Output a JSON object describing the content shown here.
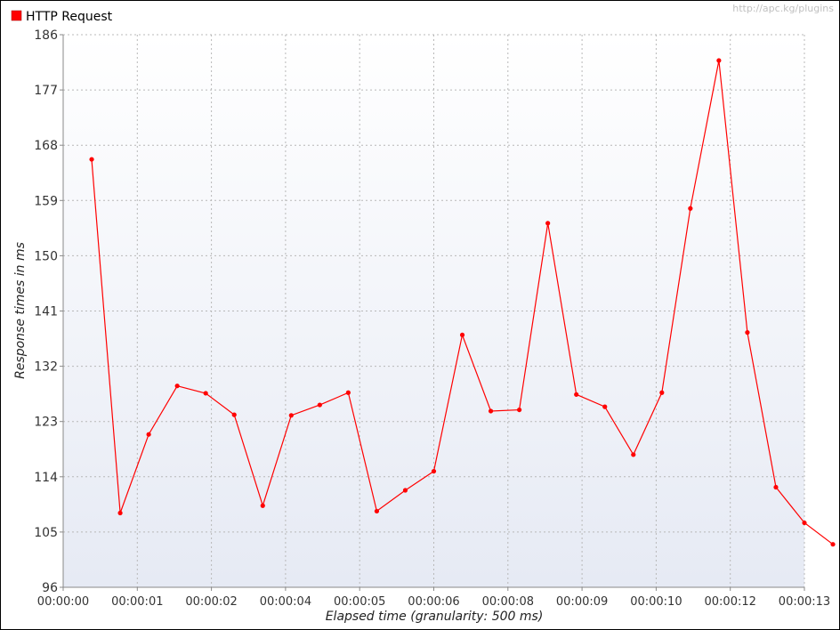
{
  "legend": {
    "label": "HTTP Request"
  },
  "watermark": "http://apc.kg/plugins",
  "colors": {
    "series": "#ff0000",
    "grid": "#b8b8b8",
    "plot_bg_top": "#ffffff",
    "plot_bg_bottom": "#e6eaf4"
  },
  "chart_data": {
    "type": "line",
    "xlabel": "Elapsed time (granularity: 500 ms)",
    "ylabel": "Response times in ms",
    "ylim": [
      96,
      186
    ],
    "xlim": [
      "00:00:00",
      "00:00:13"
    ],
    "yticks": [
      96,
      105,
      114,
      123,
      132,
      141,
      150,
      159,
      168,
      177,
      186
    ],
    "xticks": [
      "00:00:00",
      "00:00:01",
      "00:00:02",
      "00:00:04",
      "00:00:05",
      "00:00:06",
      "00:00:08",
      "00:00:09",
      "00:00:10",
      "00:00:12",
      "00:00:13"
    ],
    "grid": true,
    "legend_position": "top-left",
    "series": [
      {
        "name": "HTTP Request",
        "x": [
          "00:00:00.5",
          "00:00:01.0",
          "00:00:01.5",
          "00:00:02.0",
          "00:00:02.5",
          "00:00:03.0",
          "00:00:03.5",
          "00:00:04.0",
          "00:00:04.5",
          "00:00:05.0",
          "00:00:05.5",
          "00:00:06.0",
          "00:00:06.5",
          "00:00:07.0",
          "00:00:07.5",
          "00:00:08.0",
          "00:00:08.5",
          "00:00:09.0",
          "00:00:09.5",
          "00:00:10.0",
          "00:00:10.5",
          "00:00:11.0",
          "00:00:11.5",
          "00:00:12.0",
          "00:00:12.5",
          "00:00:13.0",
          "00:00:13.5"
        ],
        "values": [
          165.7,
          108.1,
          120.9,
          128.8,
          127.6,
          124.1,
          109.3,
          124.0,
          125.7,
          127.7,
          108.4,
          111.8,
          114.9,
          137.1,
          124.7,
          124.9,
          155.3,
          127.4,
          125.4,
          117.6,
          127.7,
          157.7,
          181.8,
          137.5,
          112.3,
          106.5,
          103.0
        ]
      }
    ]
  }
}
